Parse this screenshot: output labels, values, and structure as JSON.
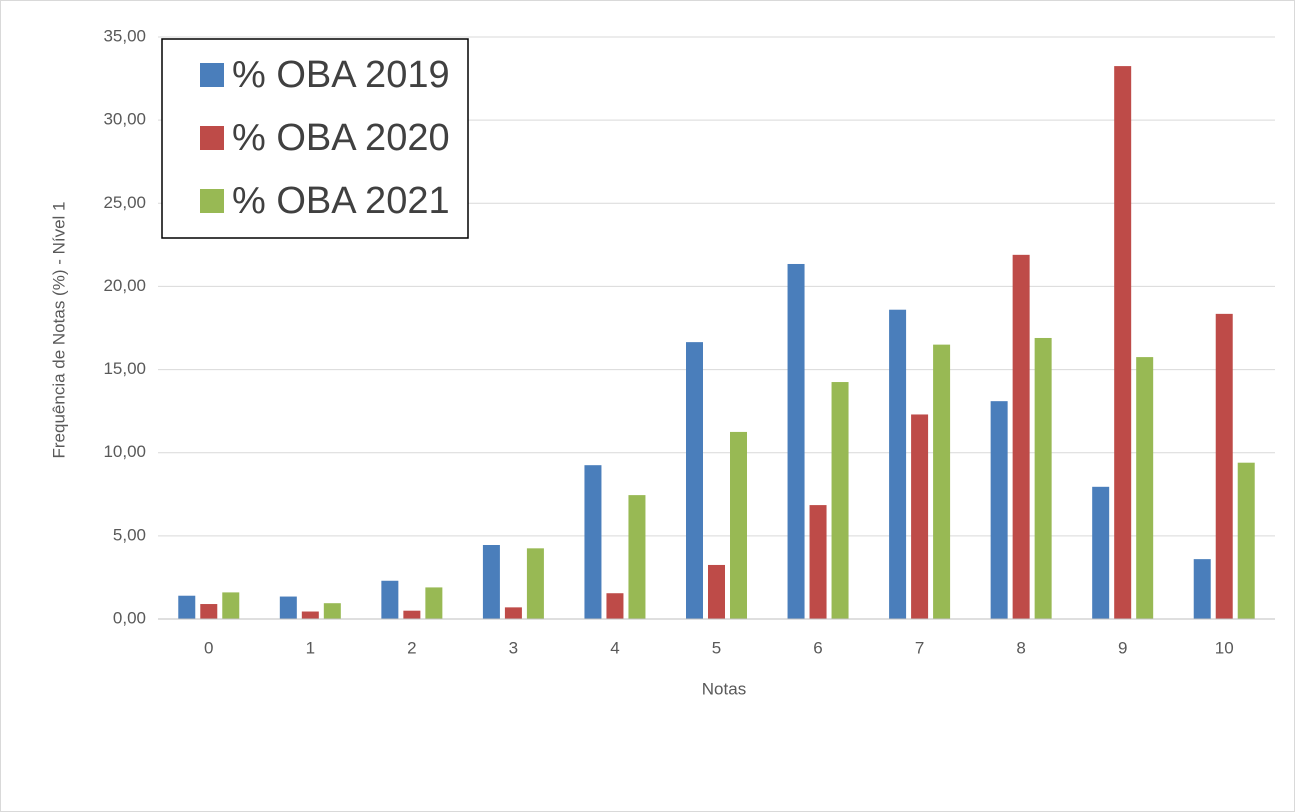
{
  "chart_data": {
    "type": "bar",
    "x_label": "Notas",
    "y_label": "Frequência de Notas (%) - Nível 1",
    "categories": [
      "0",
      "1",
      "2",
      "3",
      "4",
      "5",
      "6",
      "7",
      "8",
      "9",
      "10"
    ],
    "series": [
      {
        "name": "% OBA 2019",
        "color": "#4a7ebb",
        "values": [
          1.4,
          1.35,
          2.3,
          4.45,
          9.25,
          16.65,
          21.35,
          18.6,
          13.1,
          7.95,
          3.6
        ]
      },
      {
        "name": "% OBA 2020",
        "color": "#be4b48",
        "values": [
          0.9,
          0.45,
          0.5,
          0.7,
          1.55,
          3.25,
          6.85,
          12.3,
          21.9,
          33.25,
          18.35
        ]
      },
      {
        "name": "% OBA 2021",
        "color": "#98b954",
        "values": [
          1.6,
          0.95,
          1.9,
          4.25,
          7.45,
          11.25,
          14.25,
          16.5,
          16.9,
          15.75,
          9.4
        ]
      }
    ],
    "ylim": [
      0,
      35
    ],
    "yticks": [
      {
        "value": 0,
        "label": "0,00"
      },
      {
        "value": 5,
        "label": "5,00"
      },
      {
        "value": 10,
        "label": "10,00"
      },
      {
        "value": 15,
        "label": "15,00"
      },
      {
        "value": 20,
        "label": "20,00"
      },
      {
        "value": 25,
        "label": "25,00"
      },
      {
        "value": 30,
        "label": "30,00"
      },
      {
        "value": 35,
        "label": "35,00"
      }
    ],
    "grid": true,
    "legend": "top-left"
  }
}
